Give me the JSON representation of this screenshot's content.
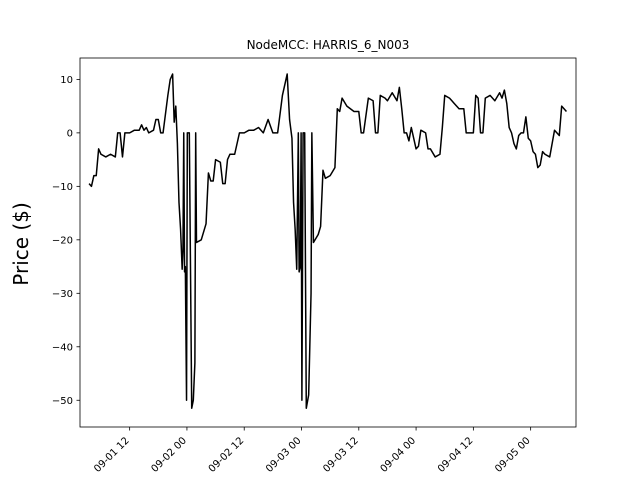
{
  "chart_data": {
    "type": "line",
    "title": "NodeMCC: HARRIS_6_N003",
    "xlabel": "",
    "ylabel": "Price ($)",
    "ylim": [
      -55,
      14
    ],
    "xlim": [
      "2023-09-01 01:36",
      "2023-09-05 09:30"
    ],
    "y_ticks": [
      10,
      0,
      -10,
      -20,
      -30,
      -40,
      -50
    ],
    "x_ticks": [
      {
        "at": "2023-09-01 12:00",
        "label": "09-01 12"
      },
      {
        "at": "2023-09-02 00:00",
        "label": "09-02 00"
      },
      {
        "at": "2023-09-02 12:00",
        "label": "09-02 12"
      },
      {
        "at": "2023-09-03 00:00",
        "label": "09-03 00"
      },
      {
        "at": "2023-09-03 12:00",
        "label": "09-03 12"
      },
      {
        "at": "2023-09-04 00:00",
        "label": "09-04 00"
      },
      {
        "at": "2023-09-04 12:00",
        "label": "09-04 12"
      },
      {
        "at": "2023-09-05 00:00",
        "label": "09-05 00"
      }
    ],
    "grid": false,
    "series": [
      {
        "color": "#000000",
        "points": [
          [
            "2023-09-01 03:30",
            -9.5
          ],
          [
            "2023-09-01 04:00",
            -10.0
          ],
          [
            "2023-09-01 04:30",
            -8.0
          ],
          [
            "2023-09-01 05:00",
            -8.0
          ],
          [
            "2023-09-01 05:30",
            -3.0
          ],
          [
            "2023-09-01 06:00",
            -4.0
          ],
          [
            "2023-09-01 07:00",
            -4.5
          ],
          [
            "2023-09-01 08:00",
            -4.0
          ],
          [
            "2023-09-01 09:00",
            -4.5
          ],
          [
            "2023-09-01 09:30",
            0.0
          ],
          [
            "2023-09-01 10:00",
            0.0
          ],
          [
            "2023-09-01 10:30",
            -4.5
          ],
          [
            "2023-09-01 11:00",
            0.0
          ],
          [
            "2023-09-01 12:00",
            0.0
          ],
          [
            "2023-09-01 13:00",
            0.5
          ],
          [
            "2023-09-01 14:00",
            0.5
          ],
          [
            "2023-09-01 14:30",
            1.5
          ],
          [
            "2023-09-01 15:00",
            0.5
          ],
          [
            "2023-09-01 15:30",
            1.0
          ],
          [
            "2023-09-01 16:00",
            0.0
          ],
          [
            "2023-09-01 17:00",
            0.5
          ],
          [
            "2023-09-01 17:30",
            2.5
          ],
          [
            "2023-09-01 18:00",
            2.5
          ],
          [
            "2023-09-01 18:30",
            0.0
          ],
          [
            "2023-09-01 19:00",
            0.0
          ],
          [
            "2023-09-01 20:00",
            7.0
          ],
          [
            "2023-09-01 20:30",
            10.0
          ],
          [
            "2023-09-01 21:00",
            11.0
          ],
          [
            "2023-09-01 21:20",
            2.0
          ],
          [
            "2023-09-01 21:40",
            5.0
          ],
          [
            "2023-09-01 22:00",
            -2.0
          ],
          [
            "2023-09-01 22:20",
            -13.0
          ],
          [
            "2023-09-01 22:40",
            -18.0
          ],
          [
            "2023-09-01 23:00",
            -25.5
          ],
          [
            "2023-09-01 23:10",
            -22.0
          ],
          [
            "2023-09-01 23:20",
            0.0
          ],
          [
            "2023-09-01 23:30",
            -26.0
          ],
          [
            "2023-09-01 23:40",
            -25.0
          ],
          [
            "2023-09-01 23:55",
            -50.0
          ],
          [
            "2023-09-02 00:05",
            0.0
          ],
          [
            "2023-09-02 00:15",
            0.0
          ],
          [
            "2023-09-02 00:30",
            0.0
          ],
          [
            "2023-09-02 01:00",
            -51.5
          ],
          [
            "2023-09-02 01:20",
            -50.0
          ],
          [
            "2023-09-02 01:40",
            -43.0
          ],
          [
            "2023-09-02 01:50",
            0.0
          ],
          [
            "2023-09-02 02:00",
            -20.5
          ],
          [
            "2023-09-02 03:00",
            -20.0
          ],
          [
            "2023-09-02 04:00",
            -17.0
          ],
          [
            "2023-09-02 04:30",
            -7.5
          ],
          [
            "2023-09-02 05:00",
            -9.0
          ],
          [
            "2023-09-02 05:30",
            -9.0
          ],
          [
            "2023-09-02 06:00",
            -5.0
          ],
          [
            "2023-09-02 07:00",
            -5.5
          ],
          [
            "2023-09-02 07:30",
            -9.5
          ],
          [
            "2023-09-02 08:00",
            -9.5
          ],
          [
            "2023-09-02 08:30",
            -5.0
          ],
          [
            "2023-09-02 09:00",
            -4.0
          ],
          [
            "2023-09-02 10:00",
            -4.0
          ],
          [
            "2023-09-02 11:00",
            0.0
          ],
          [
            "2023-09-02 12:00",
            0.0
          ],
          [
            "2023-09-02 13:00",
            0.5
          ],
          [
            "2023-09-02 14:00",
            0.5
          ],
          [
            "2023-09-02 15:00",
            1.0
          ],
          [
            "2023-09-02 16:00",
            0.0
          ],
          [
            "2023-09-02 17:00",
            2.5
          ],
          [
            "2023-09-02 18:00",
            0.0
          ],
          [
            "2023-09-02 19:00",
            0.0
          ],
          [
            "2023-09-02 20:00",
            7.0
          ],
          [
            "2023-09-02 21:00",
            11.0
          ],
          [
            "2023-09-02 21:30",
            2.5
          ],
          [
            "2023-09-02 22:00",
            -1.0
          ],
          [
            "2023-09-02 22:20",
            -13.0
          ],
          [
            "2023-09-02 22:40",
            -18.0
          ],
          [
            "2023-09-02 23:00",
            -25.5
          ],
          [
            "2023-09-02 23:20",
            0.0
          ],
          [
            "2023-09-02 23:30",
            -26.0
          ],
          [
            "2023-09-02 23:45",
            -25.0
          ],
          [
            "2023-09-02 23:55",
            0.0
          ],
          [
            "2023-09-03 00:05",
            -50.0
          ],
          [
            "2023-09-03 00:20",
            0.0
          ],
          [
            "2023-09-03 00:40",
            0.0
          ],
          [
            "2023-09-03 01:00",
            -51.5
          ],
          [
            "2023-09-03 01:30",
            -49.0
          ],
          [
            "2023-09-03 02:00",
            -30.0
          ],
          [
            "2023-09-03 02:10",
            0.0
          ],
          [
            "2023-09-03 02:30",
            -20.5
          ],
          [
            "2023-09-03 03:30",
            -19.0
          ],
          [
            "2023-09-03 04:00",
            -17.5
          ],
          [
            "2023-09-03 04:30",
            -7.0
          ],
          [
            "2023-09-03 05:00",
            -8.5
          ],
          [
            "2023-09-03 06:00",
            -8.0
          ],
          [
            "2023-09-03 07:00",
            -6.5
          ],
          [
            "2023-09-03 07:30",
            4.5
          ],
          [
            "2023-09-03 08:00",
            4.0
          ],
          [
            "2023-09-03 08:30",
            6.5
          ],
          [
            "2023-09-03 09:30",
            5.0
          ],
          [
            "2023-09-03 11:00",
            4.0
          ],
          [
            "2023-09-03 12:00",
            4.0
          ],
          [
            "2023-09-03 12:30",
            0.0
          ],
          [
            "2023-09-03 13:00",
            0.0
          ],
          [
            "2023-09-03 14:00",
            6.5
          ],
          [
            "2023-09-03 15:00",
            6.0
          ],
          [
            "2023-09-03 15:30",
            0.0
          ],
          [
            "2023-09-03 16:00",
            0.0
          ],
          [
            "2023-09-03 16:30",
            7.0
          ],
          [
            "2023-09-03 17:30",
            6.5
          ],
          [
            "2023-09-03 18:00",
            6.0
          ],
          [
            "2023-09-03 19:00",
            7.5
          ],
          [
            "2023-09-03 20:00",
            6.0
          ],
          [
            "2023-09-03 20:30",
            8.5
          ],
          [
            "2023-09-03 21:00",
            4.5
          ],
          [
            "2023-09-03 21:30",
            0.0
          ],
          [
            "2023-09-03 22:00",
            0.0
          ],
          [
            "2023-09-03 22:30",
            -1.5
          ],
          [
            "2023-09-03 23:00",
            1.0
          ],
          [
            "2023-09-04 00:00",
            -3.0
          ],
          [
            "2023-09-04 00:30",
            -2.5
          ],
          [
            "2023-09-04 01:00",
            0.5
          ],
          [
            "2023-09-04 02:00",
            0.0
          ],
          [
            "2023-09-04 02:30",
            -3.0
          ],
          [
            "2023-09-04 03:00",
            -3.0
          ],
          [
            "2023-09-04 04:00",
            -4.5
          ],
          [
            "2023-09-04 05:00",
            -4.0
          ],
          [
            "2023-09-04 05:30",
            1.0
          ],
          [
            "2023-09-04 06:00",
            7.0
          ],
          [
            "2023-09-04 07:00",
            6.5
          ],
          [
            "2023-09-04 07:30",
            6.0
          ],
          [
            "2023-09-04 08:00",
            5.5
          ],
          [
            "2023-09-04 08:30",
            5.0
          ],
          [
            "2023-09-04 09:00",
            4.5
          ],
          [
            "2023-09-04 10:00",
            4.5
          ],
          [
            "2023-09-04 10:30",
            0.0
          ],
          [
            "2023-09-04 11:00",
            0.0
          ],
          [
            "2023-09-04 12:00",
            0.0
          ],
          [
            "2023-09-04 12:30",
            7.0
          ],
          [
            "2023-09-04 13:00",
            6.5
          ],
          [
            "2023-09-04 13:30",
            0.0
          ],
          [
            "2023-09-04 14:00",
            0.0
          ],
          [
            "2023-09-04 14:30",
            6.5
          ],
          [
            "2023-09-04 15:30",
            7.0
          ],
          [
            "2023-09-04 16:30",
            6.0
          ],
          [
            "2023-09-04 17:30",
            7.5
          ],
          [
            "2023-09-04 18:00",
            6.5
          ],
          [
            "2023-09-04 18:30",
            8.0
          ],
          [
            "2023-09-04 19:00",
            5.5
          ],
          [
            "2023-09-04 19:30",
            1.0
          ],
          [
            "2023-09-04 20:00",
            0.0
          ],
          [
            "2023-09-04 20:30",
            -2.0
          ],
          [
            "2023-09-04 21:00",
            -3.0
          ],
          [
            "2023-09-04 21:30",
            -0.5
          ],
          [
            "2023-09-04 22:00",
            0.0
          ],
          [
            "2023-09-04 22:30",
            0.0
          ],
          [
            "2023-09-04 23:00",
            3.0
          ],
          [
            "2023-09-04 23:30",
            -1.0
          ],
          [
            "2023-09-05 00:00",
            -1.5
          ],
          [
            "2023-09-05 00:30",
            -3.5
          ],
          [
            "2023-09-05 01:00",
            -4.0
          ],
          [
            "2023-09-05 01:30",
            -6.5
          ],
          [
            "2023-09-05 02:00",
            -6.0
          ],
          [
            "2023-09-05 02:30",
            -3.5
          ],
          [
            "2023-09-05 03:00",
            -4.0
          ],
          [
            "2023-09-05 04:00",
            -4.5
          ],
          [
            "2023-09-05 05:00",
            0.5
          ],
          [
            "2023-09-05 06:00",
            -0.5
          ],
          [
            "2023-09-05 06:30",
            5.0
          ],
          [
            "2023-09-05 07:30",
            4.0
          ]
        ]
      }
    ]
  }
}
